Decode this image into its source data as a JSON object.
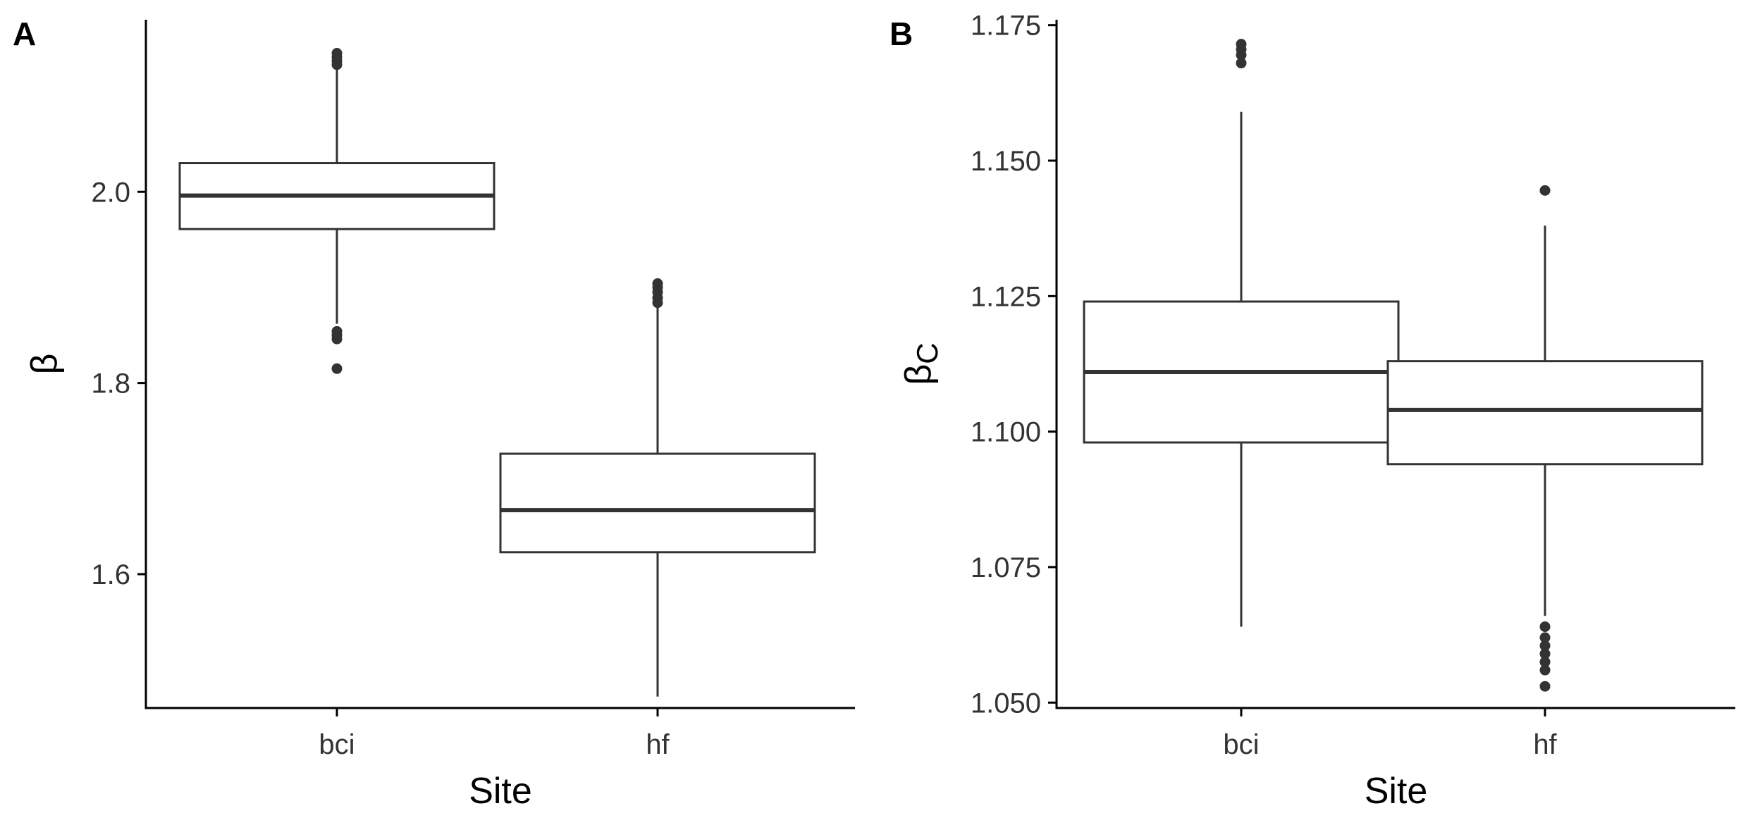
{
  "chart_data": [
    {
      "type": "box",
      "panel_label": "A",
      "xlabel": "Site",
      "ylabel": "β",
      "ylabel_sub": "",
      "ylim": [
        1.46,
        2.18
      ],
      "yticks": [
        1.6,
        1.8,
        2.0
      ],
      "ytick_labels": [
        "1.6",
        "1.8",
        "2.0"
      ],
      "categories": [
        "bci",
        "hf"
      ],
      "boxes": [
        {
          "category": "bci",
          "whisker_low": 1.862,
          "q1": 1.961,
          "median": 1.996,
          "q3": 2.03,
          "whisker_high": 2.129,
          "outliers": [
            1.815,
            1.846,
            1.85,
            1.854,
            2.133,
            2.137,
            2.141,
            2.145
          ]
        },
        {
          "category": "hf",
          "whisker_low": 1.472,
          "q1": 1.623,
          "median": 1.667,
          "q3": 1.726,
          "whisker_high": 1.879,
          "outliers": [
            1.884,
            1.889,
            1.895,
            1.9,
            1.904
          ]
        }
      ]
    },
    {
      "type": "box",
      "panel_label": "B",
      "xlabel": "Site",
      "ylabel": "β",
      "ylabel_sub": "C",
      "ylim": [
        1.049,
        1.176
      ],
      "yticks": [
        1.05,
        1.075,
        1.1,
        1.125,
        1.15,
        1.175
      ],
      "ytick_labels": [
        "1.050",
        "1.075",
        "1.100",
        "1.125",
        "1.150",
        "1.175"
      ],
      "categories": [
        "bci",
        "hf"
      ],
      "boxes": [
        {
          "category": "bci",
          "whisker_low": 1.064,
          "q1": 1.098,
          "median": 1.111,
          "q3": 1.124,
          "whisker_high": 1.159,
          "outliers": [
            1.168,
            1.1695,
            1.1705,
            1.1715
          ]
        },
        {
          "category": "hf",
          "whisker_low": 1.066,
          "q1": 1.094,
          "median": 1.104,
          "q3": 1.113,
          "whisker_high": 1.138,
          "outliers": [
            1.053,
            1.056,
            1.0575,
            1.059,
            1.0605,
            1.062,
            1.064,
            1.1445
          ]
        }
      ]
    }
  ]
}
